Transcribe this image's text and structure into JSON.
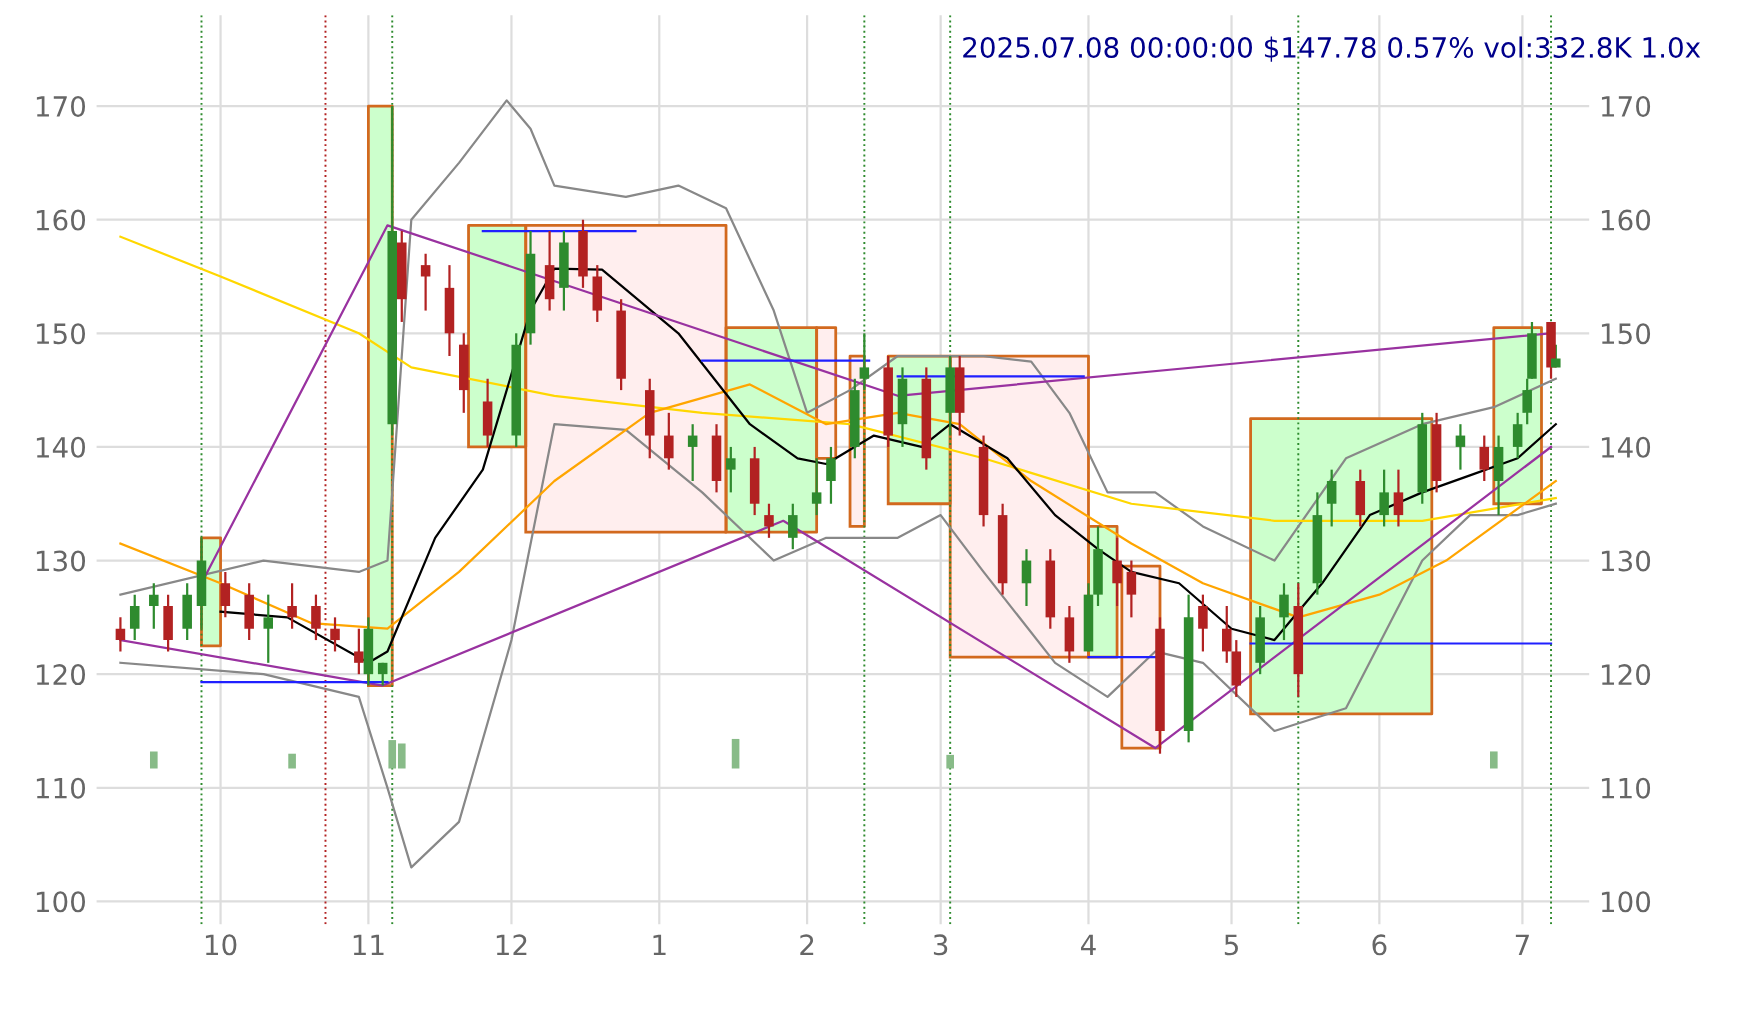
{
  "chart_data": {
    "type": "candlestick",
    "title": "2025.07.08 00:00:00 $147.78 0.57% vol:332.8K 1.0x",
    "x": [
      "2024-09-10",
      "2024-09-13",
      "2024-09-17",
      "2024-09-20",
      "2024-09-24",
      "2024-09-27",
      "2024-10-02",
      "2024-10-07",
      "2024-10-11",
      "2024-10-16",
      "2024-10-21",
      "2024-10-25",
      "2024-10-30",
      "2024-11-01",
      "2024-11-04",
      "2024-11-06",
      "2024-11-08",
      "2024-11-13",
      "2024-11-18",
      "2024-11-21",
      "2024-11-26",
      "2024-12-02",
      "2024-12-05",
      "2024-12-09",
      "2024-12-12",
      "2024-12-16",
      "2024-12-19",
      "2024-12-24",
      "2024-12-30",
      "2025-01-03",
      "2025-01-08",
      "2025-01-13",
      "2025-01-16",
      "2025-01-21",
      "2025-01-24",
      "2025-01-29",
      "2025-02-03",
      "2025-02-06",
      "2025-02-11",
      "2025-02-13",
      "2025-02-18",
      "2025-02-21",
      "2025-02-26",
      "2025-03-03",
      "2025-03-05",
      "2025-03-10",
      "2025-03-14",
      "2025-03-19",
      "2025-03-24",
      "2025-03-28",
      "2025-04-01",
      "2025-04-03",
      "2025-04-07",
      "2025-04-10",
      "2025-04-16",
      "2025-04-22",
      "2025-04-25",
      "2025-04-30",
      "2025-05-02",
      "2025-05-07",
      "2025-05-12",
      "2025-05-15",
      "2025-05-19",
      "2025-05-22",
      "2025-05-28",
      "2025-06-02",
      "2025-06-05",
      "2025-06-10",
      "2025-06-13",
      "2025-06-18",
      "2025-06-23",
      "2025-06-26",
      "2025-06-30",
      "2025-07-02",
      "2025-07-03",
      "2025-07-07",
      "2025-07-08"
    ],
    "ohlc": [
      [
        124,
        125,
        122,
        123
      ],
      [
        124,
        127,
        123,
        126
      ],
      [
        126,
        128,
        124,
        127
      ],
      [
        126,
        127,
        122,
        123
      ],
      [
        124,
        128,
        123,
        127
      ],
      [
        126,
        132,
        124,
        130
      ],
      [
        128,
        129,
        125,
        126
      ],
      [
        127,
        128,
        123,
        124
      ],
      [
        124,
        127,
        121,
        125
      ],
      [
        126,
        128,
        124,
        125
      ],
      [
        126,
        127,
        123,
        124
      ],
      [
        124,
        125,
        122,
        123
      ],
      [
        122,
        124,
        120,
        121
      ],
      [
        120,
        125,
        119,
        124
      ],
      [
        120,
        121,
        119,
        121
      ],
      [
        142,
        170,
        141,
        159
      ],
      [
        158,
        159,
        151,
        153
      ],
      [
        156,
        157,
        152,
        155
      ],
      [
        154,
        156,
        148,
        150
      ],
      [
        149,
        150,
        143,
        145
      ],
      [
        144,
        146,
        140,
        141
      ],
      [
        141,
        150,
        140,
        149
      ],
      [
        150,
        159,
        149,
        157
      ],
      [
        156,
        159,
        152,
        153
      ],
      [
        154,
        159,
        152,
        158
      ],
      [
        159,
        160,
        154,
        155
      ],
      [
        155,
        156,
        151,
        152
      ],
      [
        152,
        153,
        145,
        146
      ],
      [
        145,
        146,
        139,
        141
      ],
      [
        141,
        143,
        138,
        139
      ],
      [
        140,
        142,
        137,
        141
      ],
      [
        141,
        142,
        136,
        137
      ],
      [
        138,
        140,
        136,
        139
      ],
      [
        139,
        140,
        134,
        135
      ],
      [
        134,
        135,
        132,
        133
      ],
      [
        132,
        135,
        131,
        134
      ],
      [
        135,
        139,
        134,
        136
      ],
      [
        137,
        140,
        135,
        139
      ],
      [
        140,
        146,
        139,
        145
      ],
      [
        146,
        150,
        145,
        147
      ],
      [
        147,
        148,
        140,
        141
      ],
      [
        142,
        147,
        140,
        146
      ],
      [
        146,
        147,
        138,
        139
      ],
      [
        143,
        148,
        141,
        147
      ],
      [
        147,
        148,
        141,
        143
      ],
      [
        140,
        141,
        133,
        134
      ],
      [
        134,
        135,
        127,
        128
      ],
      [
        128,
        131,
        126,
        130
      ],
      [
        130,
        131,
        124,
        125
      ],
      [
        125,
        126,
        121,
        122
      ],
      [
        122,
        128,
        122,
        127
      ],
      [
        127,
        133,
        126,
        131
      ],
      [
        130,
        132,
        126,
        128
      ],
      [
        129,
        130,
        125,
        127
      ],
      [
        124,
        125,
        113,
        115
      ],
      [
        115,
        127,
        114,
        125
      ],
      [
        126,
        127,
        122,
        124
      ],
      [
        124,
        126,
        121,
        122
      ],
      [
        122,
        123,
        118,
        119
      ],
      [
        121,
        126,
        120,
        125
      ],
      [
        125,
        128,
        123,
        127
      ],
      [
        126,
        128,
        118,
        120
      ],
      [
        128,
        136,
        127,
        134
      ],
      [
        135,
        138,
        133,
        137
      ],
      [
        137,
        138,
        133,
        134
      ],
      [
        134,
        138,
        133,
        136
      ],
      [
        136,
        138,
        133,
        134
      ],
      [
        136,
        143,
        135,
        142
      ],
      [
        142,
        143,
        136,
        137
      ],
      [
        140,
        142,
        138,
        141
      ],
      [
        140,
        141,
        137,
        138
      ],
      [
        137,
        141,
        134,
        140
      ],
      [
        140,
        143,
        139,
        142
      ],
      [
        143,
        146,
        142,
        145
      ],
      [
        146,
        151,
        146,
        150
      ],
      [
        151,
        151,
        146,
        147
      ],
      [
        147,
        149,
        147,
        147.78
      ]
    ],
    "colors": [
      "#b22222",
      "#2e8b2e",
      "#2e8b2e",
      "#b22222",
      "#2e8b2e",
      "#2e8b2e",
      "#b22222",
      "#b22222",
      "#2e8b2e",
      "#b22222",
      "#b22222",
      "#b22222",
      "#b22222",
      "#2e8b2e",
      "#2e8b2e",
      "#2e8b2e",
      "#b22222",
      "#b22222",
      "#b22222",
      "#b22222",
      "#b22222",
      "#2e8b2e",
      "#2e8b2e",
      "#b22222",
      "#2e8b2e",
      "#b22222",
      "#b22222",
      "#b22222",
      "#b22222",
      "#b22222",
      "#2e8b2e",
      "#b22222",
      "#2e8b2e",
      "#b22222",
      "#b22222",
      "#2e8b2e",
      "#2e8b2e",
      "#2e8b2e",
      "#2e8b2e",
      "#2e8b2e",
      "#b22222",
      "#2e8b2e",
      "#b22222",
      "#2e8b2e",
      "#b22222",
      "#b22222",
      "#b22222",
      "#2e8b2e",
      "#b22222",
      "#b22222",
      "#2e8b2e",
      "#2e8b2e",
      "#b22222",
      "#b22222",
      "#b22222",
      "#2e8b2e",
      "#b22222",
      "#b22222",
      "#b22222",
      "#2e8b2e",
      "#2e8b2e",
      "#b22222",
      "#2e8b2e",
      "#2e8b2e",
      "#b22222",
      "#2e8b2e",
      "#b22222",
      "#2e8b2e",
      "#b22222",
      "#2e8b2e",
      "#b22222",
      "#2e8b2e",
      "#2e8b2e",
      "#2e8b2e",
      "#2e8b2e",
      "#b22222",
      "#2e8b2e"
    ],
    "series": [
      {
        "type": "line",
        "color": "#ccffcc",
        "x": [
          "2024-09-27",
          "2024-10-01"
        ],
        "values": [
          null,
          null
        ],
        "lower": [
          122.5,
          122.5
        ],
        "upper": [
          132,
          132
        ]
      },
      {
        "type": "line",
        "color": "#ccffcc",
        "x": [
          "2024-11-01",
          "2024-11-06"
        ],
        "values": [
          null,
          null
        ],
        "lower": [
          119,
          119
        ],
        "upper": [
          170,
          170
        ]
      },
      {
        "type": "line",
        "color": "#ccffcc",
        "x": [
          "2024-11-22",
          "2024-12-04"
        ],
        "values": [
          null,
          null
        ],
        "lower": [
          140,
          140
        ],
        "upper": [
          159.5,
          159.5
        ]
      },
      {
        "type": "line",
        "color": "#ffeeee",
        "x": [
          "2024-12-04",
          "2025-01-15"
        ],
        "values": [
          null,
          null
        ],
        "lower": [
          132.5,
          132.5
        ],
        "upper": [
          159.5,
          159.5
        ]
      },
      {
        "type": "line",
        "color": "#ccffcc",
        "x": [
          "2025-01-15",
          "2025-02-03"
        ],
        "values": [
          null,
          null
        ],
        "lower": [
          132.5,
          132.5
        ],
        "upper": [
          150.5,
          150.5
        ]
      },
      {
        "type": "line",
        "color": "#ffeeee",
        "x": [
          "2025-02-03",
          "2025-02-07"
        ],
        "values": [
          null,
          null
        ],
        "lower": [
          139,
          139
        ],
        "upper": [
          150.5,
          150.5
        ]
      },
      {
        "type": "line",
        "color": "#ffeeee",
        "x": [
          "2025-02-10",
          "2025-02-13"
        ],
        "values": [
          null,
          null
        ],
        "lower": [
          133,
          133
        ],
        "upper": [
          148,
          148
        ]
      },
      {
        "type": "line",
        "color": "#ccffcc",
        "x": [
          "2025-02-18",
          "2025-03-03"
        ],
        "values": [
          null,
          null
        ],
        "lower": [
          135,
          135
        ],
        "upper": [
          148,
          148
        ]
      },
      {
        "type": "line",
        "color": "#ffeeee",
        "x": [
          "2025-03-03",
          "2025-04-01"
        ],
        "values": [
          null,
          null
        ],
        "lower": [
          121.5,
          121.5
        ],
        "upper": [
          148,
          148
        ]
      },
      {
        "type": "line",
        "color": "#ccffcc",
        "x": [
          "2025-04-01",
          "2025-04-07"
        ],
        "values": [
          null,
          null
        ],
        "lower": [
          121.5,
          121.5
        ],
        "upper": [
          133,
          133
        ]
      },
      {
        "type": "line",
        "color": "#ffeeee",
        "x": [
          "2025-04-08",
          "2025-04-16"
        ],
        "values": [
          null,
          null
        ],
        "lower": [
          113.5,
          113.5
        ],
        "upper": [
          129.5,
          129.5
        ]
      },
      {
        "type": "line",
        "color": "#ccffcc",
        "x": [
          "2025-05-05",
          "2025-06-12"
        ],
        "values": [
          null,
          null
        ],
        "lower": [
          116.5,
          116.5
        ],
        "upper": [
          142.5,
          142.5
        ]
      },
      {
        "type": "line",
        "color": "#ccffcc",
        "x": [
          "2025-06-25",
          "2025-07-05"
        ],
        "values": [
          null,
          null
        ],
        "lower": [
          135,
          135
        ],
        "upper": [
          150.5,
          150.5
        ]
      },
      {
        "type": "line",
        "color": "#888888",
        "x": [
          "2024-09-10",
          "2024-10-10",
          "2024-10-30",
          "2024-11-05",
          "2024-11-10",
          "2024-11-20",
          "2024-11-30",
          "2024-12-05",
          "2024-12-10",
          "2024-12-25",
          "2025-01-05",
          "2025-01-15",
          "2025-01-25",
          "2025-02-01",
          "2025-02-10",
          "2025-02-20",
          "2025-03-01",
          "2025-03-10",
          "2025-03-20",
          "2025-03-28",
          "2025-04-05",
          "2025-04-15",
          "2025-04-25",
          "2025-05-10",
          "2025-05-25",
          "2025-06-10",
          "2025-06-25",
          "2025-07-08"
        ],
        "values": [
          127,
          130,
          129,
          130,
          160,
          165,
          170.5,
          168,
          163,
          162,
          163,
          161,
          152,
          143,
          145,
          148,
          148,
          148,
          147.5,
          143,
          136,
          136,
          133,
          130,
          139,
          142,
          143.5,
          146
        ]
      },
      {
        "type": "line",
        "color": "#888888",
        "x": [
          "2024-09-10",
          "2024-10-10",
          "2024-10-30",
          "2024-11-05",
          "2024-11-10",
          "2024-11-20",
          "2024-12-01",
          "2024-12-10",
          "2024-12-25",
          "2025-01-10",
          "2025-01-25",
          "2025-02-05",
          "2025-02-20",
          "2025-03-01",
          "2025-03-10",
          "2025-03-25",
          "2025-04-05",
          "2025-04-15",
          "2025-04-25",
          "2025-05-10",
          "2025-05-25",
          "2025-06-10",
          "2025-06-20",
          "2025-06-30",
          "2025-07-08"
        ],
        "values": [
          121,
          120,
          118,
          110,
          103,
          107,
          123,
          142,
          141.5,
          136,
          130,
          132,
          132,
          134,
          129,
          121,
          118,
          122,
          121,
          115,
          117,
          130,
          134,
          134,
          135
        ]
      },
      {
        "type": "line",
        "color": "#ffd700",
        "x": [
          "2024-09-10",
          "2024-10-01",
          "2024-10-30",
          "2024-11-10",
          "2024-12-10",
          "2025-01-10",
          "2025-02-10",
          "2025-03-10",
          "2025-04-10",
          "2025-05-10",
          "2025-06-10",
          "2025-07-08"
        ],
        "values": [
          158.5,
          155,
          150,
          147,
          144.5,
          143,
          142,
          139,
          135,
          133.5,
          133.5,
          135.5
        ]
      },
      {
        "type": "line",
        "color": "#ffa500",
        "x": [
          "2024-09-10",
          "2024-10-01",
          "2024-10-20",
          "2024-11-05",
          "2024-11-20",
          "2024-12-10",
          "2024-12-30",
          "2025-01-20",
          "2025-02-05",
          "2025-02-20",
          "2025-03-05",
          "2025-03-20",
          "2025-04-10",
          "2025-04-25",
          "2025-05-15",
          "2025-06-01",
          "2025-06-15",
          "2025-07-08"
        ],
        "values": [
          131.5,
          128,
          124.5,
          124,
          129,
          137,
          143,
          145.5,
          142,
          143,
          142,
          137,
          131.5,
          128,
          125,
          127,
          130,
          137
        ]
      },
      {
        "type": "line",
        "color": "#000000",
        "x": [
          "2024-10-01",
          "2024-10-15",
          "2024-11-01",
          "2024-11-05",
          "2024-11-15",
          "2024-11-25",
          "2024-12-05",
          "2024-12-10",
          "2024-12-20",
          "2025-01-05",
          "2025-01-20",
          "2025-01-30",
          "2025-02-05",
          "2025-02-15",
          "2025-02-25",
          "2025-03-03",
          "2025-03-15",
          "2025-03-25",
          "2025-04-03",
          "2025-04-10",
          "2025-04-20",
          "2025-05-01",
          "2025-05-10",
          "2025-05-20",
          "2025-05-30",
          "2025-06-10",
          "2025-06-20",
          "2025-06-30",
          "2025-07-08"
        ],
        "values": [
          125.5,
          125,
          121,
          122,
          132,
          138,
          152,
          155.7,
          155.6,
          150,
          142,
          139,
          138.5,
          141,
          140,
          142,
          139,
          134,
          131,
          129,
          128,
          124,
          123,
          128,
          134,
          136,
          137.5,
          139,
          142
        ]
      },
      {
        "type": "line",
        "color": "#9932a0",
        "x": [
          "2024-09-27",
          "2024-11-05",
          "2025-02-20",
          "2025-07-07"
        ],
        "values": [
          128,
          159.5,
          144.5,
          150
        ]
      },
      {
        "type": "line",
        "color": "#9932a0",
        "x": [
          "2024-09-10",
          "2024-11-04",
          "2025-01-27",
          "2025-04-15",
          "2025-07-07"
        ],
        "values": [
          123,
          119,
          133.5,
          113.5,
          140
        ]
      },
      {
        "type": "line",
        "color": "#2020ff",
        "x": [
          "2024-09-27",
          "2024-11-05"
        ],
        "values": [
          119.3,
          119.3
        ]
      },
      {
        "type": "line",
        "color": "#2020ff",
        "x": [
          "2024-11-25",
          "2024-12-27"
        ],
        "values": [
          159,
          159
        ]
      },
      {
        "type": "line",
        "color": "#2020ff",
        "x": [
          "2025-01-10",
          "2025-02-14"
        ],
        "values": [
          147.6,
          147.6
        ]
      },
      {
        "type": "line",
        "color": "#2020ff",
        "x": [
          "2025-02-20",
          "2025-03-31"
        ],
        "values": [
          146.2,
          146.2
        ]
      },
      {
        "type": "line",
        "color": "#2020ff",
        "x": [
          "2025-04-01",
          "2025-04-15"
        ],
        "values": [
          121.5,
          121.5
        ]
      },
      {
        "type": "line",
        "color": "#2020ff",
        "x": [
          "2025-05-05",
          "2025-07-07"
        ],
        "values": [
          122.7,
          122.7
        ]
      },
      {
        "type": "bar",
        "color": "#88bb88",
        "x": [
          "2024-09-17",
          "2024-10-16",
          "2024-11-06",
          "2024-11-08",
          "2025-01-17",
          "2025-03-03",
          "2025-06-25"
        ],
        "base": [
          111.7,
          111.7,
          111.7,
          111.7,
          111.7,
          111.7,
          111.7
        ],
        "values": [
          1.5,
          1.3,
          2.5,
          2.2,
          2.6,
          1.2,
          1.5
        ]
      }
    ],
    "ref_lines": [
      {
        "axis": "x",
        "value": "2024-09-27",
        "color": "#2e8b2e",
        "line_style": "dotted"
      },
      {
        "axis": "x",
        "value": "2024-10-23",
        "color": "#b22222",
        "line_style": "dotted"
      },
      {
        "axis": "x",
        "value": "2024-11-06",
        "color": "#2e8b2e",
        "line_style": "dotted"
      },
      {
        "axis": "x",
        "value": "2025-02-13",
        "color": "#2e8b2e",
        "line_style": "dotted"
      },
      {
        "axis": "x",
        "value": "2025-03-03",
        "color": "#2e8b2e",
        "line_style": "dotted"
      },
      {
        "axis": "x",
        "value": "2025-05-15",
        "color": "#2e8b2e",
        "line_style": "dotted"
      },
      {
        "axis": "x",
        "value": "2025-07-07",
        "color": "#2e8b2e",
        "line_style": "dotted"
      }
    ],
    "xlim": [
      "2024-09-05",
      "2025-07-15"
    ],
    "xticks": [
      {
        "value": "2024-10-01",
        "label": "10"
      },
      {
        "value": "2024-11-01",
        "label": "11"
      },
      {
        "value": "2024-12-01",
        "label": "12"
      },
      {
        "value": "2025-01-01",
        "label": "1"
      },
      {
        "value": "2025-02-01",
        "label": "2"
      },
      {
        "value": "2025-03-01",
        "label": "3"
      },
      {
        "value": "2025-04-01",
        "label": "4"
      },
      {
        "value": "2025-05-01",
        "label": "5"
      },
      {
        "value": "2025-06-01",
        "label": "6"
      },
      {
        "value": "2025-07-01",
        "label": "7"
      }
    ],
    "ylim": [
      98,
      178
    ],
    "yticks": [
      100,
      110,
      120,
      130,
      140,
      150,
      160,
      170
    ],
    "y2lim": [
      98,
      178
    ],
    "y2ticks": [
      100,
      110,
      120,
      130,
      140,
      150,
      160,
      170
    ],
    "grid": true
  }
}
